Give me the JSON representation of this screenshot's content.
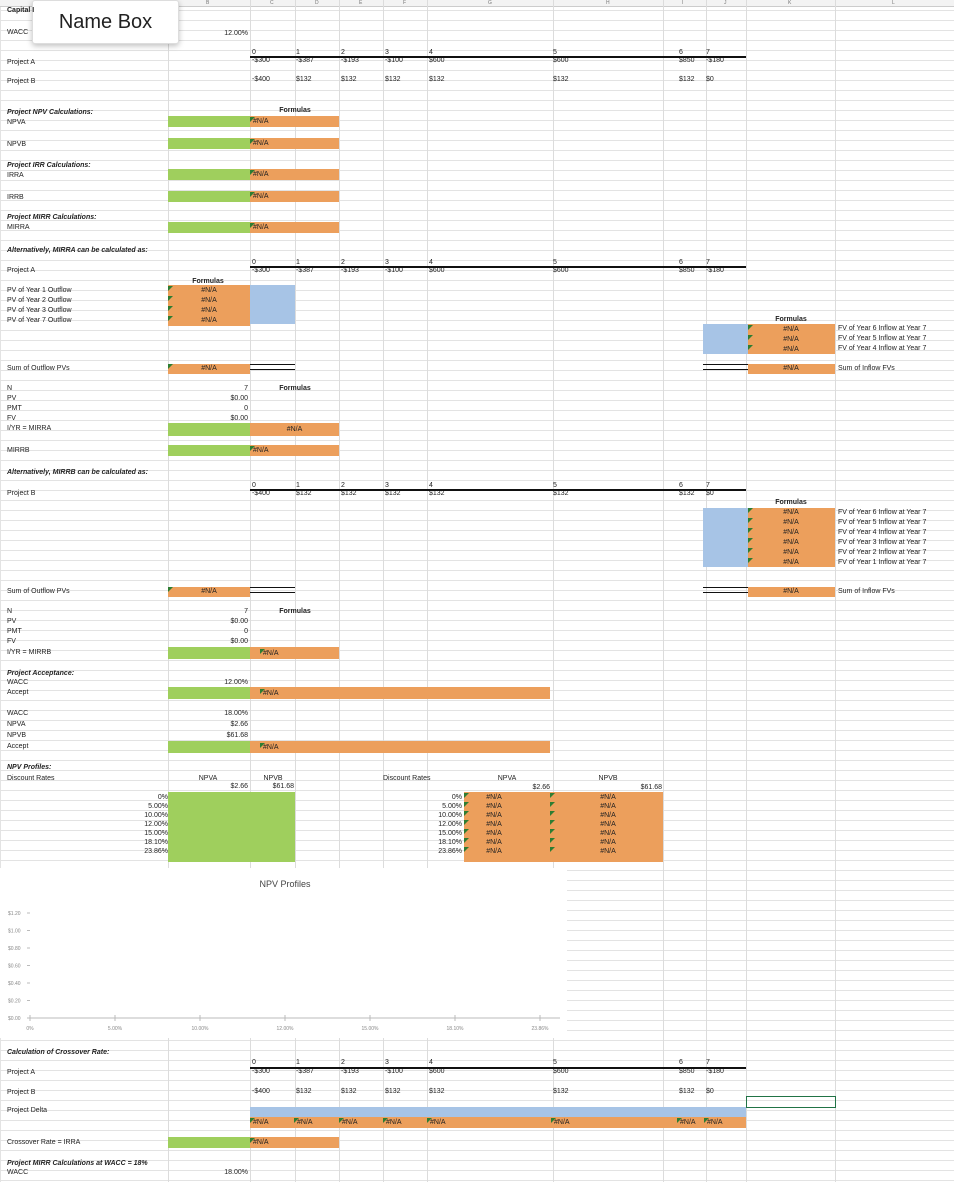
{
  "ui": {
    "name_box": "Name Box",
    "col_headers": [
      "B",
      "C",
      "D",
      "E",
      "F",
      "G",
      "H",
      "I",
      "J",
      "K",
      "L"
    ],
    "cut_title": "Capital I",
    "wacc_label": "WACC",
    "wacc_value": "12.00%"
  },
  "years": [
    "0",
    "1",
    "2",
    "3",
    "4",
    "5",
    "6",
    "7"
  ],
  "project_a": {
    "label": "Project A",
    "flows": [
      "-$300",
      "-$387",
      "-$193",
      "-$100",
      "$600",
      "$600",
      "$850",
      "-$180"
    ]
  },
  "project_b": {
    "label": "Project B",
    "flows": [
      "-$400",
      "$132",
      "$132",
      "$132",
      "$132",
      "$132",
      "$132",
      "$0"
    ]
  },
  "npv_section": {
    "title": "Project NPV Calculations:",
    "npva": "NPVA",
    "npvb": "NPVB",
    "formulas": "Formulas",
    "na": "#N/A"
  },
  "irr_section": {
    "title": "Project IRR Calculations:",
    "irra": "IRRA",
    "irrb": "IRRB"
  },
  "mirr_section": {
    "title": "Project MIRR Calculations:",
    "mirra": "MIRRA"
  },
  "alt_a": {
    "title": "Alternatively, MIRRA can be calculated as:",
    "project": "Project A",
    "formulas": "Formulas",
    "pv_labels": [
      "PV of Year 1 Outflow",
      "PV of Year 2 Outflow",
      "PV of Year 3 Outflow",
      "PV of Year 7 Outflow"
    ],
    "fv_labels": [
      "FV of Year 6 Inflow at Year 7",
      "FV of Year 5 Inflow at Year 7",
      "FV of Year 4 Inflow at Year 7"
    ],
    "sum_out": "Sum of Outflow PVs",
    "sum_in": "Sum of Inflow FVs",
    "calc_labels": [
      "N",
      "PV",
      "PMT",
      "FV",
      "I/YR = MIRRA"
    ],
    "calc_values": [
      "7",
      "$0.00",
      "0",
      "$0.00"
    ],
    "mirrb": "MIRRB"
  },
  "alt_b": {
    "title": "Alternatively, MIRRB can be calculated as:",
    "project": "Project B",
    "fv_labels": [
      "FV of Year 6 Inflow at Year 7",
      "FV of Year 5 Inflow at Year 7",
      "FV of Year 4 Inflow at Year 7",
      "FV of Year 3 Inflow at Year 7",
      "FV of Year 2 Inflow at Year 7",
      "FV of Year 1 Inflow at Year 7"
    ],
    "calc_labels": [
      "N",
      "PV",
      "PMT",
      "FV",
      "I/YR = MIRRB"
    ],
    "calc_values": [
      "7",
      "$0.00",
      "0",
      "$0.00"
    ]
  },
  "acceptance": {
    "title": "Project Acceptance:",
    "wacc": "WACC",
    "wacc_val": "12.00%",
    "accept": "Accept",
    "wacc2": "WACC",
    "wacc2_val": "18.00%",
    "npva": "NPVA",
    "npva_val": "$2.66",
    "npvb": "NPVB",
    "npvb_val": "$61.68",
    "accept2": "Accept"
  },
  "profiles": {
    "title": "NPV Profiles:",
    "discount_rates": "Discount Rates",
    "npva": "NPVA",
    "npvb": "NPVB",
    "npva_val": "$2.66",
    "npvb_val": "$61.68",
    "rates": [
      "0%",
      "5.00%",
      "10.00%",
      "12.00%",
      "15.00%",
      "18.10%",
      "23.86%"
    ],
    "discount_rates2": "Discount Rates"
  },
  "chart_data": {
    "type": "line",
    "title": "NPV Profiles",
    "categories": [
      "0%",
      "5.00%",
      "10.00%",
      "12.00%",
      "15.00%",
      "18.10%",
      "23.86%"
    ],
    "series": [],
    "ylim": [
      0,
      1.2
    ],
    "yticks": [
      "$1.20",
      "$1.00",
      "$0.80",
      "$0.60",
      "$0.40",
      "$0.20",
      "$0.00"
    ],
    "xlabel": "",
    "ylabel": ""
  },
  "crossover": {
    "title": "Calculation of Crossover Rate:",
    "project_a": "Project A",
    "project_b": "Project B",
    "delta": "Project Delta",
    "rate": "Crossover Rate = IRRA"
  },
  "mirr18": {
    "title": "Project MIRR Calculations at WACC = 18%",
    "wacc": "WACC",
    "wacc_val": "18.00%"
  }
}
